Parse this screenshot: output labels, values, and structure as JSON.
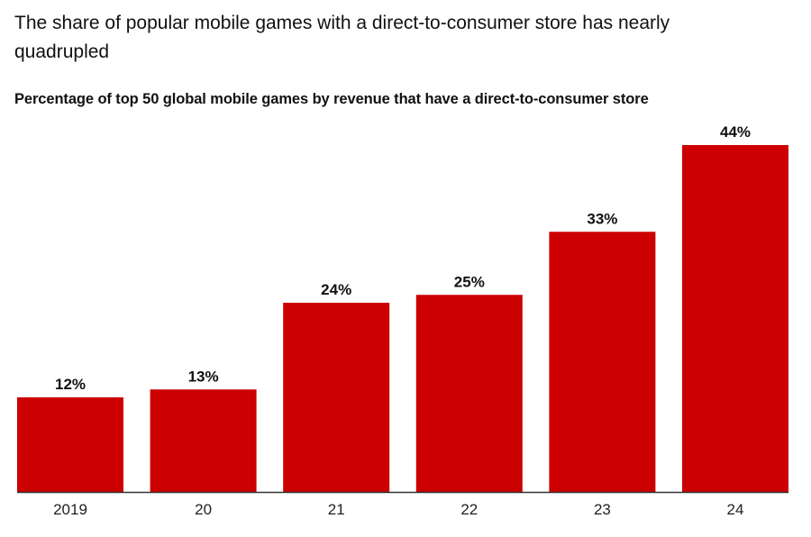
{
  "headline": "The share of popular mobile games with a direct-to-consumer store has nearly quadrupled",
  "chart_data": {
    "type": "bar",
    "title": "Percentage of top 50 global mobile games by revenue that have a direct-to-consumer store",
    "categories": [
      "2019",
      "20",
      "21",
      "22",
      "23",
      "24"
    ],
    "values": [
      12,
      13,
      24,
      25,
      33,
      44
    ],
    "data_labels": [
      "12%",
      "13%",
      "24%",
      "25%",
      "33%",
      "44%"
    ],
    "unit": "%",
    "ylim": [
      0,
      44
    ],
    "grid": false,
    "bar_color": "#cc0000",
    "axis_color": "#333333"
  }
}
